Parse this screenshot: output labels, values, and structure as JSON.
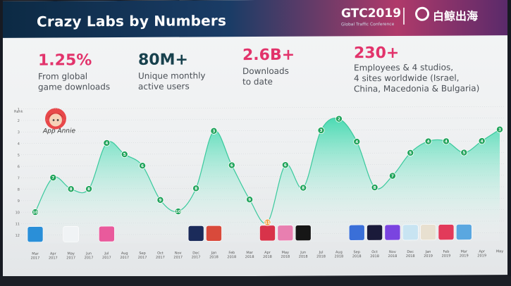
{
  "header": {
    "title": "Crazy Labs by Numbers",
    "conference": "GTC2019",
    "conference_sub": "Global Traffic Conference",
    "brand": "白鲸出海"
  },
  "stats": [
    {
      "value": "1.25%",
      "label_lines": [
        "From global",
        "game downloads"
      ]
    },
    {
      "value": "80M+",
      "label_lines": [
        "Unique monthly",
        "active users"
      ]
    },
    {
      "value": "2.6B+",
      "label_lines": [
        "Downloads",
        "to date"
      ]
    },
    {
      "value": "230+",
      "label_lines": [
        "Employees & 4 studios,",
        "4 sites worldwide (Israel,",
        "China, Macedonia & Bulgaria)"
      ]
    }
  ],
  "logo": {
    "label": "App Annie"
  },
  "chart_data": {
    "type": "area",
    "ylabel": "Rank",
    "y_ticks": [
      1,
      2,
      3,
      4,
      5,
      6,
      7,
      8,
      9,
      10,
      11,
      12
    ],
    "ylim": [
      1,
      12
    ],
    "points": [
      {
        "month": "Mar 2017",
        "rank": 10
      },
      {
        "month": "Apr 2017",
        "rank": 7
      },
      {
        "month": "May 2017",
        "rank": 8
      },
      {
        "month": "Jun 2017",
        "rank": 8
      },
      {
        "month": "Jul 2017",
        "rank": 4
      },
      {
        "month": "Aug 2017",
        "rank": 5
      },
      {
        "month": "Sep 2017",
        "rank": 6
      },
      {
        "month": "Oct 2017",
        "rank": 9
      },
      {
        "month": "Nov 2017",
        "rank": 10
      },
      {
        "month": "Dec 2017",
        "rank": 8
      },
      {
        "month": "Jan 2018",
        "rank": 3
      },
      {
        "month": "Feb 2018",
        "rank": 6
      },
      {
        "month": "Mar 2018",
        "rank": 9
      },
      {
        "month": "Apr 2018",
        "rank": 11
      },
      {
        "month": "May 2018",
        "rank": 6
      },
      {
        "month": "Jun 2018",
        "rank": 8
      },
      {
        "month": "Jul 2018",
        "rank": 3
      },
      {
        "month": "Aug 2018",
        "rank": 2
      },
      {
        "month": "Sep 2018",
        "rank": 4
      },
      {
        "month": "Oct 2018",
        "rank": 8
      },
      {
        "month": "Nov 2018",
        "rank": 7
      },
      {
        "month": "Dec 2018",
        "rank": 5
      },
      {
        "month": "Jan 2019",
        "rank": 4
      },
      {
        "month": "Feb 2019",
        "rank": 4
      },
      {
        "month": "Mar 2019",
        "rank": 5
      },
      {
        "month": "Apr 2019",
        "rank": 4
      },
      {
        "month": "May",
        "rank": 3
      }
    ],
    "x_labels_lines": [
      [
        "Mar",
        "2017"
      ],
      [
        "Apr",
        "2017"
      ],
      [
        "May",
        "2017"
      ],
      [
        "Jun",
        "2017"
      ],
      [
        "Jul",
        "2017"
      ],
      [
        "Aug",
        "2017"
      ],
      [
        "Sep",
        "2017"
      ],
      [
        "Oct",
        "2017"
      ],
      [
        "Nov",
        "2017"
      ],
      [
        "Dec",
        "2017"
      ],
      [
        "Jan",
        "2018"
      ],
      [
        "Feb",
        "2018"
      ],
      [
        "Mar",
        "2018"
      ],
      [
        "Apr",
        "2018"
      ],
      [
        "May",
        "2018"
      ],
      [
        "Jun",
        "2018"
      ],
      [
        "Jul",
        "2018"
      ],
      [
        "Aug",
        "2018"
      ],
      [
        "Sep",
        "2018"
      ],
      [
        "Oct",
        "2018"
      ],
      [
        "Nov",
        "2018"
      ],
      [
        "Dec",
        "2018"
      ],
      [
        "Jan",
        "2019"
      ],
      [
        "Feb",
        "2019"
      ],
      [
        "Mar",
        "2019"
      ],
      [
        "Apr",
        "2019"
      ],
      [
        "May",
        ""
      ]
    ],
    "highlight_month": "Apr 2018",
    "colors": {
      "fill_top": "#2fd6a8",
      "fill_bottom": "#ffffff",
      "marker": "#1fa35a",
      "marker_highlight": "#f2a34a",
      "grid": "#c8cdd1"
    }
  },
  "thumbnail_index": [
    0,
    2,
    4,
    9,
    10,
    13,
    14,
    15,
    18,
    19,
    20,
    21,
    22,
    23,
    24
  ]
}
